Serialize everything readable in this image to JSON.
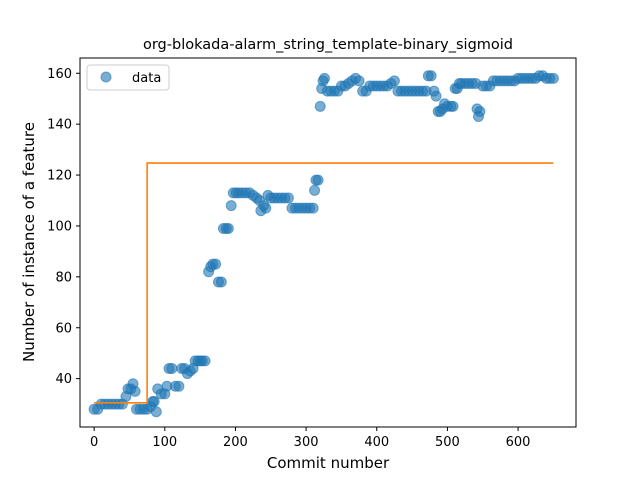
{
  "chart_data": {
    "type": "scatter",
    "title": "org-blokada-alarm_string_template-binary_sigmoid",
    "xlabel": "Commit number",
    "ylabel": "Number of instance of a feature",
    "xlim": [
      -20,
      682
    ],
    "ylim": [
      21,
      166
    ],
    "xticks": [
      0,
      100,
      200,
      300,
      400,
      500,
      600
    ],
    "yticks": [
      40,
      60,
      80,
      100,
      120,
      140,
      160
    ],
    "grid": false,
    "legend": {
      "placement": "top-left",
      "entries": [
        "data"
      ]
    },
    "colors": {
      "data": "#1f77b4",
      "fit": "#ff7f0e"
    },
    "series": [
      {
        "name": "data",
        "kind": "scatter",
        "points": [
          [
            0,
            28
          ],
          [
            5,
            28
          ],
          [
            10,
            30
          ],
          [
            15,
            30
          ],
          [
            20,
            30
          ],
          [
            25,
            30
          ],
          [
            30,
            30
          ],
          [
            35,
            30
          ],
          [
            40,
            30
          ],
          [
            45,
            33
          ],
          [
            48,
            36
          ],
          [
            52,
            36
          ],
          [
            55,
            38
          ],
          [
            58,
            35
          ],
          [
            60,
            28
          ],
          [
            65,
            28
          ],
          [
            70,
            28
          ],
          [
            75,
            28
          ],
          [
            80,
            29
          ],
          [
            83,
            31
          ],
          [
            85,
            31
          ],
          [
            88,
            27
          ],
          [
            90,
            36
          ],
          [
            95,
            34
          ],
          [
            100,
            34
          ],
          [
            103,
            37
          ],
          [
            106,
            44
          ],
          [
            110,
            44
          ],
          [
            115,
            37
          ],
          [
            120,
            37
          ],
          [
            124,
            44
          ],
          [
            128,
            44
          ],
          [
            132,
            42
          ],
          [
            136,
            43
          ],
          [
            140,
            44
          ],
          [
            143,
            47
          ],
          [
            147,
            47
          ],
          [
            150,
            47
          ],
          [
            153,
            47
          ],
          [
            157,
            47
          ],
          [
            162,
            82
          ],
          [
            165,
            84
          ],
          [
            168,
            85
          ],
          [
            172,
            85
          ],
          [
            176,
            78
          ],
          [
            180,
            78
          ],
          [
            183,
            99
          ],
          [
            187,
            99
          ],
          [
            190,
            99
          ],
          [
            194,
            108
          ],
          [
            197,
            113
          ],
          [
            201,
            113
          ],
          [
            205,
            113
          ],
          [
            210,
            113
          ],
          [
            215,
            113
          ],
          [
            220,
            113
          ],
          [
            225,
            112
          ],
          [
            230,
            111
          ],
          [
            234,
            110
          ],
          [
            236,
            106
          ],
          [
            240,
            108
          ],
          [
            243,
            107
          ],
          [
            246,
            112
          ],
          [
            250,
            111
          ],
          [
            255,
            111
          ],
          [
            260,
            111
          ],
          [
            265,
            111
          ],
          [
            270,
            111
          ],
          [
            275,
            111
          ],
          [
            280,
            107
          ],
          [
            285,
            107
          ],
          [
            290,
            107
          ],
          [
            295,
            107
          ],
          [
            300,
            107
          ],
          [
            305,
            107
          ],
          [
            310,
            107
          ],
          [
            312,
            114
          ],
          [
            314,
            118
          ],
          [
            317,
            118
          ],
          [
            320,
            147
          ],
          [
            322,
            154
          ],
          [
            324,
            157
          ],
          [
            326,
            158
          ],
          [
            330,
            153
          ],
          [
            335,
            153
          ],
          [
            340,
            153
          ],
          [
            345,
            153
          ],
          [
            350,
            155
          ],
          [
            355,
            155
          ],
          [
            360,
            156
          ],
          [
            365,
            157
          ],
          [
            370,
            158
          ],
          [
            375,
            157
          ],
          [
            380,
            153
          ],
          [
            385,
            153
          ],
          [
            390,
            155
          ],
          [
            395,
            155
          ],
          [
            400,
            155
          ],
          [
            405,
            155
          ],
          [
            410,
            155
          ],
          [
            415,
            155
          ],
          [
            420,
            156
          ],
          [
            425,
            157
          ],
          [
            430,
            153
          ],
          [
            435,
            153
          ],
          [
            440,
            153
          ],
          [
            445,
            153
          ],
          [
            450,
            153
          ],
          [
            455,
            153
          ],
          [
            460,
            153
          ],
          [
            465,
            153
          ],
          [
            470,
            153
          ],
          [
            473,
            159
          ],
          [
            477,
            159
          ],
          [
            481,
            153
          ],
          [
            484,
            151
          ],
          [
            487,
            145
          ],
          [
            490,
            145
          ],
          [
            493,
            146
          ],
          [
            496,
            148
          ],
          [
            500,
            147
          ],
          [
            505,
            147
          ],
          [
            508,
            147
          ],
          [
            511,
            154
          ],
          [
            514,
            154
          ],
          [
            517,
            156
          ],
          [
            520,
            156
          ],
          [
            525,
            156
          ],
          [
            530,
            156
          ],
          [
            535,
            156
          ],
          [
            540,
            156
          ],
          [
            542,
            146
          ],
          [
            544,
            143
          ],
          [
            546,
            145
          ],
          [
            550,
            155
          ],
          [
            555,
            155
          ],
          [
            560,
            155
          ],
          [
            565,
            157
          ],
          [
            570,
            157
          ],
          [
            575,
            157
          ],
          [
            580,
            157
          ],
          [
            585,
            157
          ],
          [
            590,
            157
          ],
          [
            595,
            157
          ],
          [
            600,
            158
          ],
          [
            605,
            158
          ],
          [
            610,
            158
          ],
          [
            615,
            158
          ],
          [
            620,
            158
          ],
          [
            625,
            158
          ],
          [
            630,
            159
          ],
          [
            635,
            159
          ],
          [
            640,
            158
          ],
          [
            645,
            158
          ],
          [
            650,
            158
          ]
        ]
      },
      {
        "kind": "step-line",
        "points": [
          [
            0,
            30.5
          ],
          [
            75,
            30.5
          ],
          [
            75,
            124.7
          ],
          [
            650,
            124.7
          ]
        ]
      }
    ]
  }
}
